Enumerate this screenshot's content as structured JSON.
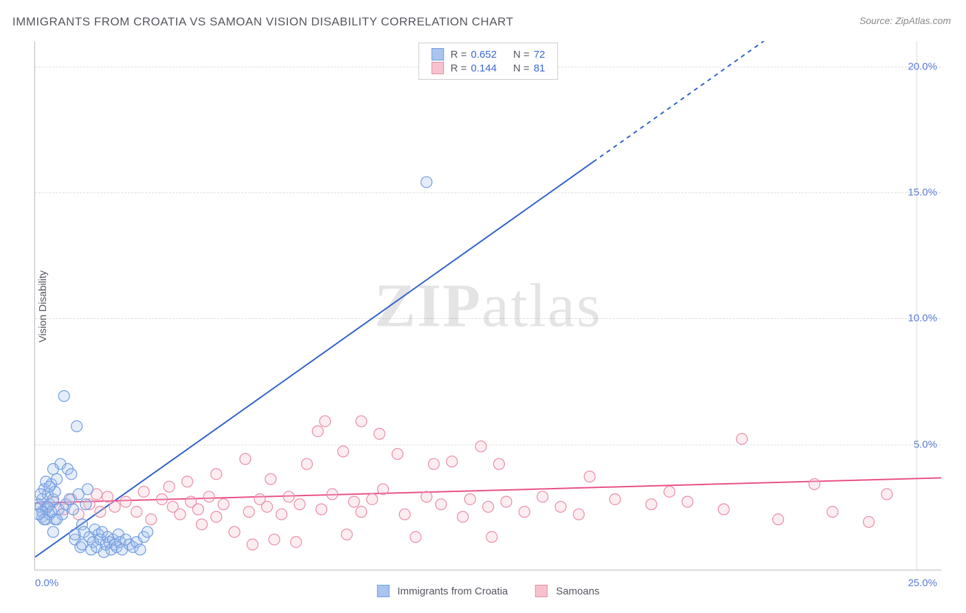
{
  "title": "IMMIGRANTS FROM CROATIA VS SAMOAN VISION DISABILITY CORRELATION CHART",
  "source": "Source: ZipAtlas.com",
  "ylabel": "Vision Disability",
  "watermark_bold": "ZIP",
  "watermark_light": "atlas",
  "chart": {
    "type": "scatter",
    "xlim": [
      0,
      25
    ],
    "ylim": [
      0,
      21
    ],
    "ytick_step": 5,
    "yticks": [
      "5.0%",
      "10.0%",
      "15.0%",
      "20.0%"
    ],
    "ytick_values": [
      5,
      10,
      15,
      20
    ],
    "xticks": [
      "0.0%",
      "25.0%"
    ],
    "xtick_values": [
      0,
      25
    ],
    "grid_color": "#dddddd",
    "background_color": "#ffffff",
    "marker_radius": 8,
    "series": [
      {
        "name": "Immigrants from Croatia",
        "color_fill": "#a9c5ef",
        "color_stroke": "#6d9be0",
        "R_label": "R =",
        "R": "0.652",
        "N_label": "N =",
        "N": "72",
        "line": {
          "slope": 1.02,
          "intercept": 0.5,
          "color": "#2e5fc9",
          "width": 2,
          "dash_after_x": 15.4
        },
        "points": [
          [
            0.1,
            2.6
          ],
          [
            0.15,
            2.5
          ],
          [
            0.2,
            2.8
          ],
          [
            0.2,
            2.1
          ],
          [
            0.25,
            3.2
          ],
          [
            0.3,
            2.4
          ],
          [
            0.3,
            2.0
          ],
          [
            0.35,
            3.0
          ],
          [
            0.4,
            2.6
          ],
          [
            0.4,
            2.2
          ],
          [
            0.45,
            3.4
          ],
          [
            0.5,
            2.8
          ],
          [
            0.5,
            1.5
          ],
          [
            0.55,
            2.0
          ],
          [
            0.6,
            3.6
          ],
          [
            0.65,
            2.4
          ],
          [
            0.7,
            4.2
          ],
          [
            0.75,
            2.2
          ],
          [
            0.8,
            6.9
          ],
          [
            0.85,
            2.6
          ],
          [
            0.9,
            4.0
          ],
          [
            0.95,
            2.8
          ],
          [
            1.0,
            3.8
          ],
          [
            1.05,
            2.4
          ],
          [
            1.1,
            1.2
          ],
          [
            1.1,
            1.4
          ],
          [
            1.15,
            5.7
          ],
          [
            1.2,
            3.0
          ],
          [
            1.25,
            0.9
          ],
          [
            1.3,
            1.8
          ],
          [
            1.3,
            1.0
          ],
          [
            1.35,
            1.5
          ],
          [
            1.4,
            2.6
          ],
          [
            1.45,
            3.2
          ],
          [
            1.5,
            1.3
          ],
          [
            1.55,
            0.8
          ],
          [
            1.6,
            1.1
          ],
          [
            1.65,
            1.6
          ],
          [
            1.7,
            0.9
          ],
          [
            1.75,
            1.4
          ],
          [
            1.8,
            1.2
          ],
          [
            1.85,
            1.5
          ],
          [
            1.9,
            0.7
          ],
          [
            1.95,
            1.0
          ],
          [
            2.0,
            1.3
          ],
          [
            2.05,
            1.1
          ],
          [
            2.1,
            0.8
          ],
          [
            2.15,
            1.2
          ],
          [
            2.2,
            1.0
          ],
          [
            2.25,
            0.9
          ],
          [
            2.3,
            1.4
          ],
          [
            2.35,
            1.1
          ],
          [
            2.4,
            0.8
          ],
          [
            2.5,
            1.2
          ],
          [
            2.6,
            1.0
          ],
          [
            2.7,
            0.9
          ],
          [
            2.8,
            1.1
          ],
          [
            2.9,
            0.8
          ],
          [
            3.0,
            1.3
          ],
          [
            3.1,
            1.5
          ],
          [
            0.3,
            3.5
          ],
          [
            0.5,
            4.0
          ],
          [
            0.6,
            2.0
          ],
          [
            0.35,
            2.5
          ],
          [
            0.45,
            2.3
          ],
          [
            0.55,
            3.1
          ],
          [
            0.2,
            2.3
          ],
          [
            0.15,
            3.0
          ],
          [
            0.25,
            2.0
          ],
          [
            0.1,
            2.2
          ],
          [
            10.8,
            15.4
          ],
          [
            0.4,
            3.3
          ]
        ]
      },
      {
        "name": "Samoans",
        "color_fill": "#f6c2cd",
        "color_stroke": "#ea8aa5",
        "R_label": "R =",
        "R": "0.144",
        "N_label": "N =",
        "N": "81",
        "line": {
          "slope": 0.04,
          "intercept": 2.65,
          "color": "#e84e87",
          "width": 2
        },
        "points": [
          [
            0.3,
            2.5
          ],
          [
            0.5,
            2.7
          ],
          [
            0.8,
            2.4
          ],
          [
            1.0,
            2.8
          ],
          [
            1.2,
            2.2
          ],
          [
            1.5,
            2.6
          ],
          [
            1.7,
            3.0
          ],
          [
            1.8,
            2.3
          ],
          [
            2.0,
            2.9
          ],
          [
            2.2,
            2.5
          ],
          [
            2.5,
            2.7
          ],
          [
            2.8,
            2.3
          ],
          [
            3.0,
            3.1
          ],
          [
            3.2,
            2.0
          ],
          [
            3.5,
            2.8
          ],
          [
            3.7,
            3.3
          ],
          [
            3.8,
            2.5
          ],
          [
            4.0,
            2.2
          ],
          [
            4.2,
            3.5
          ],
          [
            4.3,
            2.7
          ],
          [
            4.5,
            2.4
          ],
          [
            4.6,
            1.8
          ],
          [
            4.8,
            2.9
          ],
          [
            5.0,
            3.8
          ],
          [
            5.0,
            2.1
          ],
          [
            5.2,
            2.6
          ],
          [
            5.5,
            1.5
          ],
          [
            5.8,
            4.4
          ],
          [
            5.9,
            2.3
          ],
          [
            6.0,
            1.0
          ],
          [
            6.2,
            2.8
          ],
          [
            6.4,
            2.5
          ],
          [
            6.5,
            3.6
          ],
          [
            6.6,
            1.2
          ],
          [
            6.8,
            2.2
          ],
          [
            7.0,
            2.9
          ],
          [
            7.2,
            1.1
          ],
          [
            7.3,
            2.6
          ],
          [
            7.5,
            4.2
          ],
          [
            7.8,
            5.5
          ],
          [
            7.9,
            2.4
          ],
          [
            8.0,
            5.9
          ],
          [
            8.2,
            3.0
          ],
          [
            8.5,
            4.7
          ],
          [
            8.6,
            1.4
          ],
          [
            8.8,
            2.7
          ],
          [
            9.0,
            5.9
          ],
          [
            9.0,
            2.3
          ],
          [
            9.3,
            2.8
          ],
          [
            9.5,
            5.4
          ],
          [
            9.6,
            3.2
          ],
          [
            10.0,
            4.6
          ],
          [
            10.2,
            2.2
          ],
          [
            10.5,
            1.3
          ],
          [
            10.8,
            2.9
          ],
          [
            11.0,
            4.2
          ],
          [
            11.2,
            2.6
          ],
          [
            11.5,
            4.3
          ],
          [
            11.8,
            2.1
          ],
          [
            12.0,
            2.8
          ],
          [
            12.3,
            4.9
          ],
          [
            12.5,
            2.5
          ],
          [
            12.6,
            1.3
          ],
          [
            12.8,
            4.2
          ],
          [
            13.0,
            2.7
          ],
          [
            13.5,
            2.3
          ],
          [
            14.0,
            2.9
          ],
          [
            14.5,
            2.5
          ],
          [
            15.0,
            2.2
          ],
          [
            15.3,
            3.7
          ],
          [
            16.0,
            2.8
          ],
          [
            17.0,
            2.6
          ],
          [
            17.5,
            3.1
          ],
          [
            18.0,
            2.7
          ],
          [
            19.0,
            2.4
          ],
          [
            19.5,
            5.2
          ],
          [
            20.5,
            2.0
          ],
          [
            21.5,
            3.4
          ],
          [
            22.0,
            2.3
          ],
          [
            23.0,
            1.9
          ],
          [
            23.5,
            3.0
          ]
        ]
      }
    ]
  },
  "legend_bottom": [
    {
      "label": "Immigrants from Croatia",
      "fill": "#a9c5ef",
      "stroke": "#6d9be0"
    },
    {
      "label": "Samoans",
      "fill": "#f6c2cd",
      "stroke": "#ea8aa5"
    }
  ]
}
